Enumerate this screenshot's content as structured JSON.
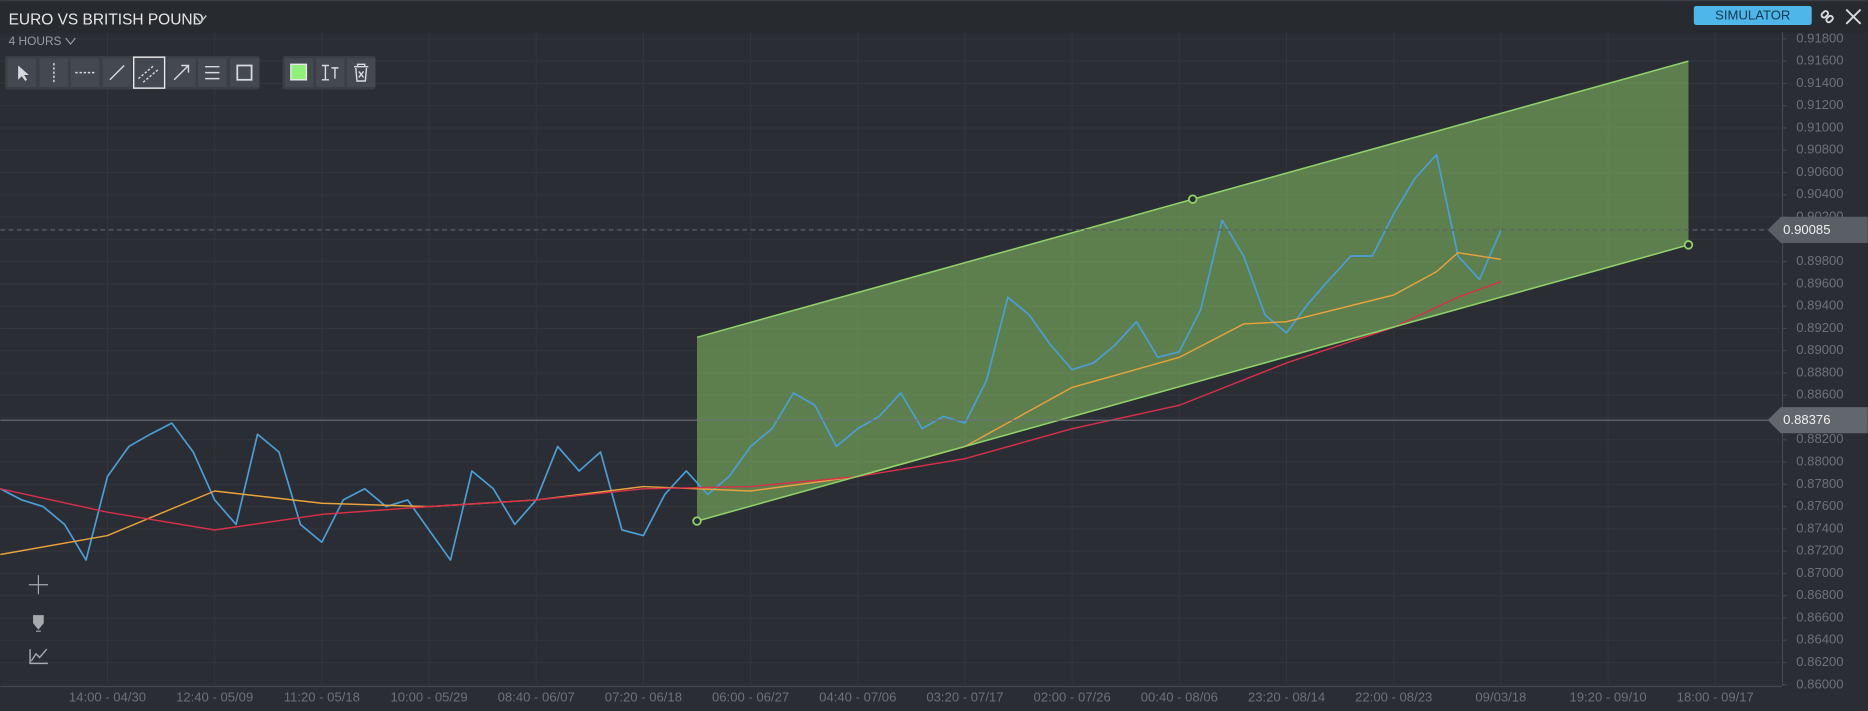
{
  "header": {
    "title": "EURO VS BRITISH POUND",
    "timeframe": "4 HOURS",
    "simulator": "SIMULATOR"
  },
  "chart_data": {
    "type": "line",
    "xlim": [
      0,
      166
    ],
    "ylim": [
      0.86,
      0.9186
    ],
    "grid": true,
    "xticks": [
      {
        "value": 10,
        "label": "14:00 - 04/30"
      },
      {
        "value": 20,
        "label": "12:40 - 05/09"
      },
      {
        "value": 30,
        "label": "11:20 - 05/18"
      },
      {
        "value": 40,
        "label": "10:00 - 05/29"
      },
      {
        "value": 50,
        "label": "08:40 - 06/07"
      },
      {
        "value": 60,
        "label": "07:20 - 06/18"
      },
      {
        "value": 70,
        "label": "06:00 - 06/27"
      },
      {
        "value": 80,
        "label": "04:40 - 07/06"
      },
      {
        "value": 90,
        "label": "03:20 - 07/17"
      },
      {
        "value": 100,
        "label": "02:00 - 07/26"
      },
      {
        "value": 110,
        "label": "00:40 - 08/06"
      },
      {
        "value": 120,
        "label": "23:20 - 08/14"
      },
      {
        "value": 130,
        "label": "22:00 - 08/23"
      },
      {
        "value": 140,
        "label": "09/03/18"
      },
      {
        "value": 150,
        "label": "19:20 - 09/10"
      },
      {
        "value": 160,
        "label": "18:00 - 09/17"
      }
    ],
    "yticks": [
      {
        "value": 0.918,
        "label": "0.91800"
      },
      {
        "value": 0.916,
        "label": "0.91600"
      },
      {
        "value": 0.914,
        "label": "0.91400"
      },
      {
        "value": 0.912,
        "label": "0.91200"
      },
      {
        "value": 0.91,
        "label": "0.91000"
      },
      {
        "value": 0.908,
        "label": "0.90800"
      },
      {
        "value": 0.906,
        "label": "0.90600"
      },
      {
        "value": 0.904,
        "label": "0.90400"
      },
      {
        "value": 0.902,
        "label": "0.90200"
      },
      {
        "value": 0.9,
        "label": "0.90000"
      },
      {
        "value": 0.898,
        "label": "0.89800"
      },
      {
        "value": 0.896,
        "label": "0.89600"
      },
      {
        "value": 0.894,
        "label": "0.89400"
      },
      {
        "value": 0.892,
        "label": "0.89200"
      },
      {
        "value": 0.89,
        "label": "0.89000"
      },
      {
        "value": 0.888,
        "label": "0.88800"
      },
      {
        "value": 0.886,
        "label": "0.88600"
      },
      {
        "value": 0.884,
        "label": "0.88400"
      },
      {
        "value": 0.882,
        "label": "0.88200"
      },
      {
        "value": 0.88,
        "label": "0.88000"
      },
      {
        "value": 0.878,
        "label": "0.87800"
      },
      {
        "value": 0.876,
        "label": "0.87600"
      },
      {
        "value": 0.874,
        "label": "0.87400"
      },
      {
        "value": 0.872,
        "label": "0.87200"
      },
      {
        "value": 0.87,
        "label": "0.87000"
      },
      {
        "value": 0.868,
        "label": "0.86800"
      },
      {
        "value": 0.866,
        "label": "0.86600"
      },
      {
        "value": 0.864,
        "label": "0.86400"
      },
      {
        "value": 0.862,
        "label": "0.86200"
      },
      {
        "value": 0.86,
        "label": "0.86000"
      }
    ],
    "series": [
      {
        "color": "#4a9fd8",
        "x": [
          0,
          2,
          4,
          6,
          8,
          10,
          12,
          14,
          16,
          18,
          20,
          22,
          24,
          26,
          28,
          30,
          32,
          34,
          36,
          38,
          40,
          42,
          44,
          46,
          48,
          50,
          52,
          54,
          56,
          58,
          60,
          62,
          64,
          66,
          68,
          70,
          72,
          74,
          76,
          78,
          80,
          82,
          84,
          86,
          88,
          90,
          92,
          94,
          96,
          98,
          100,
          102,
          104,
          106,
          108,
          110,
          112,
          114,
          116,
          118,
          120,
          122,
          124,
          126,
          128,
          130,
          132,
          134,
          136,
          138,
          140
        ],
        "values": [
          0.8776,
          0.8766,
          0.876,
          0.8744,
          0.8712,
          0.8787,
          0.8814,
          0.8825,
          0.8835,
          0.8809,
          0.8766,
          0.8744,
          0.8825,
          0.8809,
          0.8744,
          0.8728,
          0.8766,
          0.8776,
          0.876,
          0.8766,
          0.8739,
          0.8712,
          0.8792,
          0.8776,
          0.8744,
          0.8766,
          0.8814,
          0.8792,
          0.8809,
          0.8739,
          0.8734,
          0.8771,
          0.8792,
          0.8771,
          0.8787,
          0.8814,
          0.883,
          0.8862,
          0.8851,
          0.8814,
          0.883,
          0.8841,
          0.8862,
          0.883,
          0.8841,
          0.8835,
          0.8873,
          0.8948,
          0.8932,
          0.8905,
          0.8883,
          0.8889,
          0.8905,
          0.8926,
          0.8894,
          0.8899,
          0.8937,
          0.9017,
          0.8985,
          0.8932,
          0.8916,
          0.8942,
          0.8964,
          0.8985,
          0.8985,
          0.9023,
          0.9055,
          0.9076,
          0.8985,
          0.8964,
          0.9008
        ]
      },
      {
        "color": "#e8a33c",
        "x": [
          0,
          10,
          20,
          30,
          40,
          50,
          60,
          70,
          80,
          90,
          100,
          110,
          116,
          120,
          130,
          134,
          136,
          140
        ],
        "values": [
          0.8717,
          0.8734,
          0.8774,
          0.8763,
          0.876,
          0.8766,
          0.8778,
          0.8774,
          0.8787,
          0.8814,
          0.8867,
          0.8894,
          0.8924,
          0.8926,
          0.895,
          0.8971,
          0.8988,
          0.8982
        ]
      },
      {
        "color": "#d6304a",
        "x": [
          0,
          10,
          20,
          30,
          40,
          50,
          60,
          70,
          80,
          90,
          100,
          110,
          120,
          130,
          136,
          140
        ],
        "values": [
          0.8776,
          0.8755,
          0.8739,
          0.8753,
          0.876,
          0.8766,
          0.8776,
          0.8778,
          0.8787,
          0.8803,
          0.883,
          0.8851,
          0.8889,
          0.8921,
          0.8948,
          0.8962
        ]
      }
    ],
    "channel": {
      "color": "#8fd16a",
      "x": [
        65,
        157.5
      ],
      "upper": [
        0.8912,
        0.916
      ],
      "lower": [
        0.8747,
        0.8995
      ]
    },
    "price_lines": [
      {
        "value": 0.88376,
        "style": "solid"
      },
      {
        "value": 0.90085,
        "style": "dashed"
      }
    ]
  }
}
